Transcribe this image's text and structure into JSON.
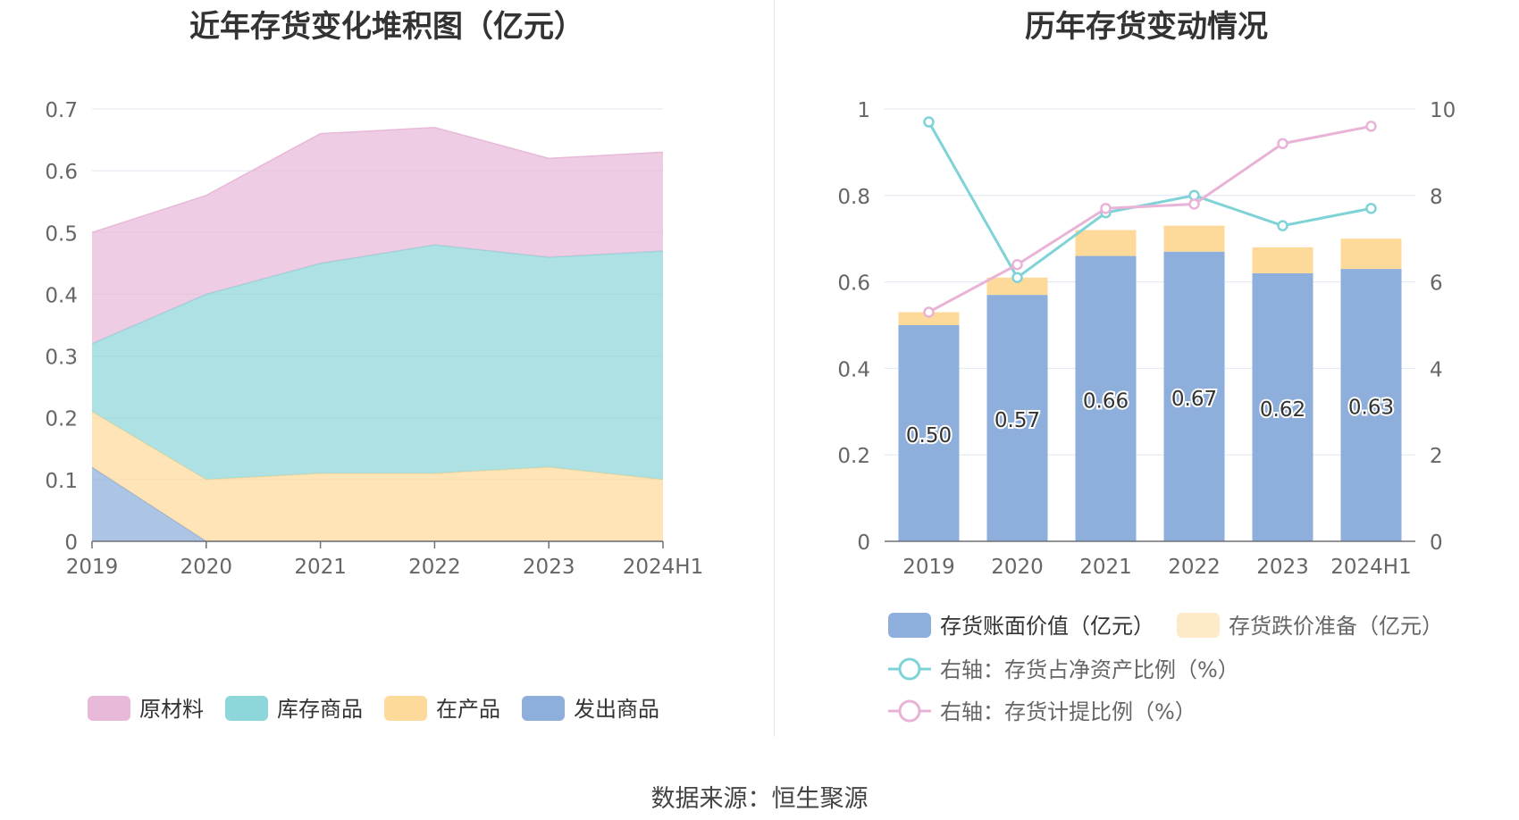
{
  "left_chart": {
    "title": "近年存货变化堆积图（亿元）"
  },
  "right_chart": {
    "title": "历年存货变动情况"
  },
  "source": "数据来源：恒生聚源",
  "colors": {
    "raw_materials": "#e8b9d8",
    "finished_goods": "#8dd6d9",
    "wip": "#fdd99a",
    "goods_shipped": "#8eaedb",
    "book_value_bar": "#8eaedb",
    "impairment_bar": "#fdd99a",
    "ratio_net_assets_line": "#7fd3d7",
    "provision_ratio_line": "#e8b3d6",
    "axis_text": "#666666",
    "grid": "#e0e6f1"
  },
  "chart_data": [
    {
      "type": "area",
      "stacked": true,
      "categories": [
        "2019",
        "2020",
        "2021",
        "2022",
        "2023",
        "2024H1"
      ],
      "series": [
        {
          "name": "发出商品",
          "values": [
            0.12,
            0.0,
            0.0,
            0.0,
            0.0,
            0.0
          ]
        },
        {
          "name": "在产品",
          "values": [
            0.09,
            0.1,
            0.11,
            0.11,
            0.12,
            0.1
          ]
        },
        {
          "name": "库存商品",
          "values": [
            0.11,
            0.3,
            0.34,
            0.37,
            0.34,
            0.37
          ]
        },
        {
          "name": "原材料",
          "values": [
            0.18,
            0.16,
            0.21,
            0.19,
            0.16,
            0.16
          ]
        }
      ],
      "legend": [
        "原材料",
        "库存商品",
        "在产品",
        "发出商品"
      ],
      "legend_position": "bottom",
      "ylim": [
        0,
        0.7
      ],
      "yticks": [
        "0",
        "0.1",
        "0.2",
        "0.3",
        "0.4",
        "0.5",
        "0.6",
        "0.7"
      ],
      "grid": true
    },
    {
      "type": "bar",
      "stacked": true,
      "categories": [
        "2019",
        "2020",
        "2021",
        "2022",
        "2023",
        "2024H1"
      ],
      "series": [
        {
          "name": "存货账面价值（亿元）",
          "values": [
            0.5,
            0.57,
            0.66,
            0.67,
            0.62,
            0.63
          ],
          "labels": [
            "0.50",
            "0.57",
            "0.66",
            "0.67",
            "0.62",
            "0.63"
          ]
        },
        {
          "name": "存货跌价准备（亿元）",
          "values": [
            0.03,
            0.04,
            0.06,
            0.06,
            0.06,
            0.07
          ]
        }
      ],
      "lines": [
        {
          "name": "右轴：存货占净资产比例（%）",
          "axis": "right",
          "values": [
            9.7,
            6.1,
            7.6,
            8.0,
            7.3,
            7.7
          ]
        },
        {
          "name": "右轴：存货计提比例（%）",
          "axis": "right",
          "values": [
            5.3,
            6.4,
            7.7,
            7.8,
            9.2,
            9.6
          ]
        }
      ],
      "ylim": [
        0,
        1
      ],
      "yticks": [
        "0",
        "0.2",
        "0.4",
        "0.6",
        "0.8",
        "1"
      ],
      "y2lim": [
        0,
        10
      ],
      "y2ticks": [
        "0",
        "2",
        "4",
        "6",
        "8",
        "10"
      ],
      "legend_position": "bottom",
      "grid": true
    }
  ]
}
